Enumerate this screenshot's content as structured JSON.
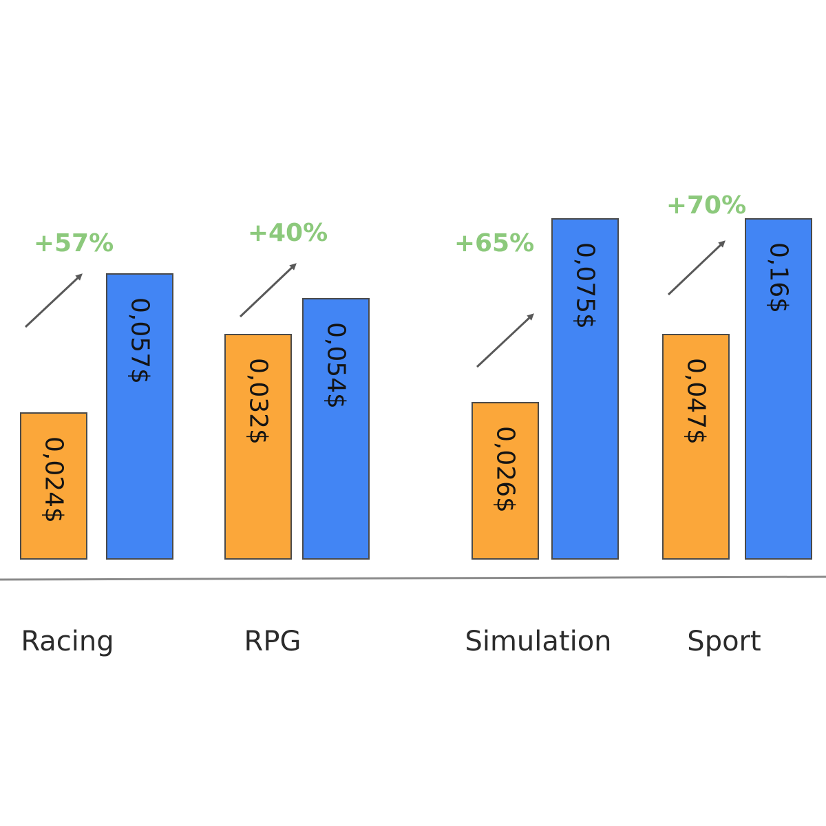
{
  "chart_data": {
    "type": "bar",
    "categories": [
      "Racing",
      "RPG",
      "Simulation",
      "Sport"
    ],
    "series": [
      {
        "values": [
          0.024,
          0.032,
          0.026,
          0.047
        ],
        "labels": [
          "0,024$",
          "0,032$",
          "0,026$",
          "0,047$"
        ]
      },
      {
        "values": [
          0.057,
          0.054,
          0.075,
          0.16
        ],
        "labels": [
          "0,057$",
          "0,054$",
          "0,075$",
          "0,16$"
        ]
      }
    ],
    "annotations": [
      "+57%",
      "+40%",
      "+65%",
      "+70%"
    ],
    "title": "",
    "xlabel": "",
    "ylabel": "",
    "colors": {
      "series_1": "#fba73a",
      "series_2": "#4285f4",
      "annotation": "#8cc97c",
      "arrow": "#585858",
      "axis": "#8a8a8a",
      "border": "#4a4a4a"
    },
    "grid": false,
    "legend": "none"
  }
}
